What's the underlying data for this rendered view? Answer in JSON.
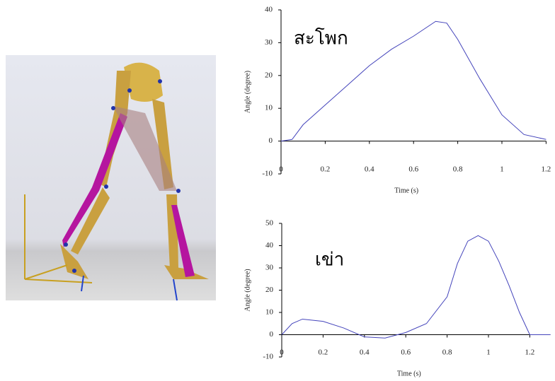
{
  "chart_data": [
    {
      "type": "line",
      "annotation": "สะโพก",
      "x_label": "Time (s)",
      "y_label": "Angle (degree)",
      "x": [
        0,
        0.05,
        0.1,
        0.2,
        0.3,
        0.4,
        0.5,
        0.6,
        0.7,
        0.75,
        0.8,
        0.9,
        1.0,
        1.1,
        1.2
      ],
      "values": [
        0,
        0.5,
        5,
        11,
        17,
        23,
        28,
        32,
        36.5,
        36,
        31,
        19,
        8,
        2,
        0.5
      ],
      "color": "#4444bb",
      "xlim": [
        0,
        1.2
      ],
      "ylim": [
        -10,
        40
      ],
      "xticks": [
        0,
        0.2,
        0.4,
        0.6,
        0.8,
        1,
        1.2
      ],
      "yticks": [
        -10,
        0,
        10,
        20,
        30,
        40
      ]
    },
    {
      "type": "line",
      "annotation": "เข่า",
      "x_label": "Time (s)",
      "y_label": "Angle (degree)",
      "x": [
        0,
        0.05,
        0.1,
        0.2,
        0.3,
        0.4,
        0.5,
        0.6,
        0.7,
        0.8,
        0.85,
        0.9,
        0.95,
        1.0,
        1.05,
        1.1,
        1.15,
        1.2,
        1.3
      ],
      "values": [
        0,
        5,
        7,
        6,
        3,
        -1,
        -1.5,
        1,
        5,
        17,
        32,
        42,
        44.5,
        42,
        33,
        22,
        10,
        0,
        0
      ],
      "color": "#4444bb",
      "xlim": [
        0,
        1.3
      ],
      "ylim": [
        -10,
        50
      ],
      "xticks": [
        0,
        0.2,
        0.4,
        0.6,
        0.8,
        1,
        1.2
      ],
      "yticks": [
        -10,
        0,
        10,
        20,
        30,
        40,
        50
      ]
    }
  ]
}
